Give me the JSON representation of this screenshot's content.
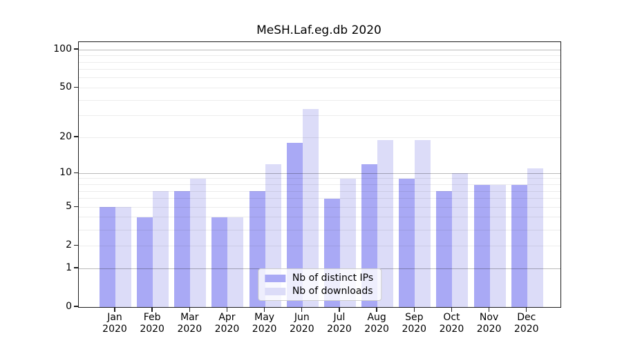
{
  "chart_data": {
    "type": "bar",
    "title": "MeSH.Laf.eg.db 2020",
    "xlabel": "",
    "ylabel": "",
    "categories": [
      "Jan",
      "Feb",
      "Mar",
      "Apr",
      "May",
      "Jun",
      "Jul",
      "Aug",
      "Sep",
      "Oct",
      "Nov",
      "Dec"
    ],
    "category_year": "2020",
    "series": [
      {
        "name": "Nb of distinct IPs",
        "color": "#a9a9f5",
        "values": [
          5,
          4,
          7,
          4,
          7,
          18,
          6,
          12,
          9,
          7,
          8,
          8
        ]
      },
      {
        "name": "Nb of downloads",
        "color": "#dcdcf8",
        "values": [
          5,
          7,
          9,
          4,
          12,
          34,
          9,
          19,
          19,
          10,
          8,
          11
        ]
      }
    ],
    "y_scale": "log1p",
    "ylim": [
      0,
      115
    ],
    "y_tick_labels": [
      0,
      1,
      2,
      5,
      10,
      20,
      50,
      100
    ],
    "grid": true,
    "grid_minor_values": [
      2,
      3,
      4,
      5,
      6,
      7,
      8,
      9,
      20,
      30,
      40,
      50,
      60,
      70,
      80,
      90
    ],
    "grid_major_values": [
      1,
      10,
      100
    ],
    "legend_position": "lower center",
    "colors": {
      "spine": "#1c1c1c",
      "text": "#000000",
      "legend_border": "#cccccc",
      "series_dark": "#a9a9f5",
      "series_light": "#dcdcf8"
    }
  }
}
